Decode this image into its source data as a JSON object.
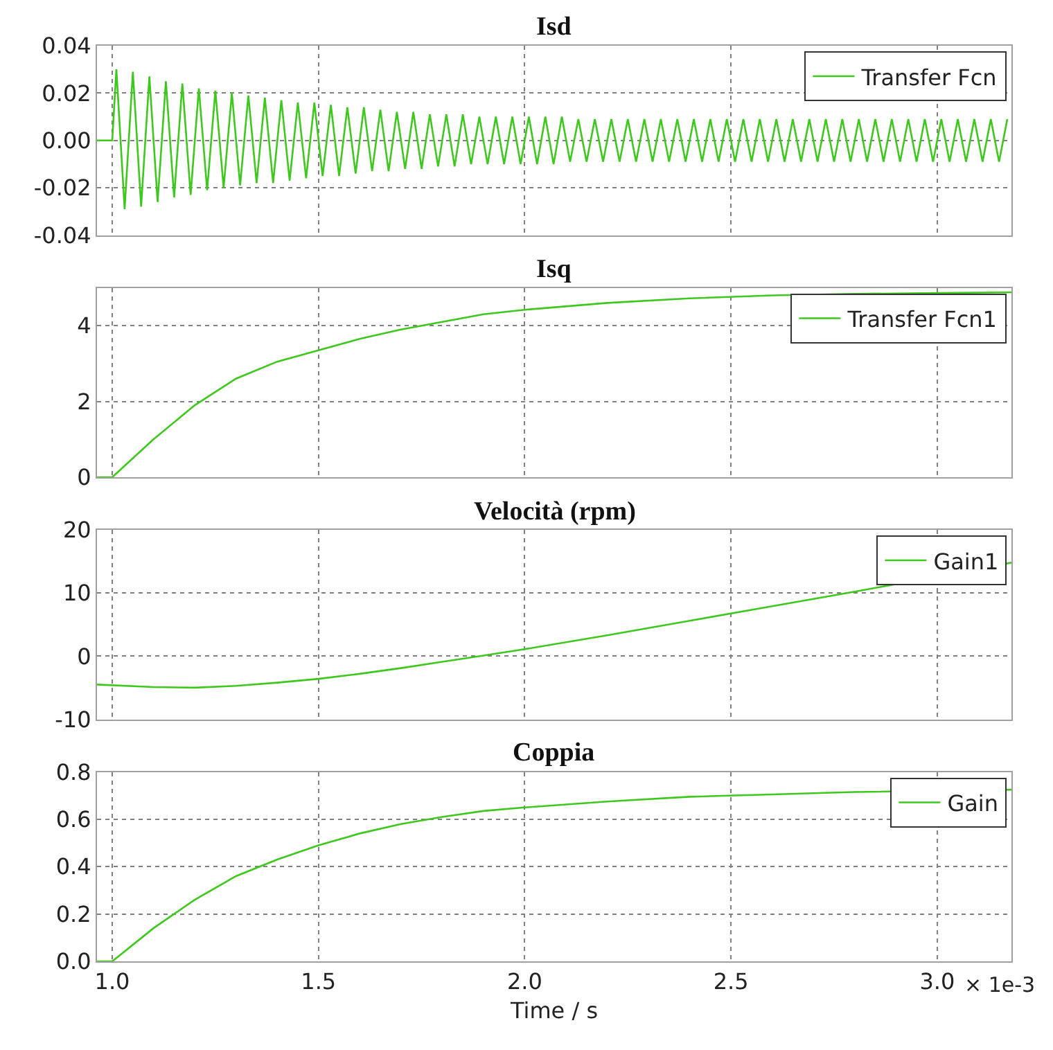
{
  "chart_data": [
    {
      "type": "line",
      "title": "Isd",
      "xlim": [
        0.963,
        3.18
      ],
      "xticks": [
        1.0,
        1.5,
        2.0,
        2.5,
        3.0
      ],
      "ylim": [
        -0.04,
        0.04
      ],
      "yticks": [
        {
          "value": -0.04,
          "label": "-0.04"
        },
        {
          "value": -0.02,
          "label": "-0.02"
        },
        {
          "value": 0,
          "label": "0.00"
        },
        {
          "value": 0.02,
          "label": "0.02"
        },
        {
          "value": 0.04,
          "label": "0.04"
        }
      ],
      "grid": true,
      "legend": "top right",
      "tick_labels": "y",
      "series": [
        {
          "name": "Transfer Fcn",
          "color": "#3ec81e",
          "x": [
            0.963,
            1.0,
            1.01,
            1.03,
            1.05,
            1.07,
            1.09,
            1.11,
            1.13,
            1.15,
            1.17,
            1.19,
            1.21,
            1.23,
            1.25,
            1.27,
            1.29,
            1.31,
            1.33,
            1.35,
            1.37,
            1.39,
            1.41,
            1.43,
            1.45,
            1.47,
            1.49,
            1.51,
            1.53,
            1.55,
            1.57,
            1.59,
            1.61,
            1.63,
            1.65,
            1.67,
            1.69,
            1.71,
            1.73,
            1.75,
            1.77,
            1.79,
            1.81,
            1.83,
            1.85,
            1.87,
            1.89,
            1.91,
            1.93,
            1.95,
            1.97,
            1.99,
            2.01,
            2.03,
            2.05,
            2.07,
            2.09,
            2.11,
            2.13,
            2.15,
            2.17,
            2.19,
            2.21,
            2.23,
            2.25,
            2.27,
            2.29,
            2.31,
            2.33,
            2.35,
            2.37,
            2.39,
            2.41,
            2.43,
            2.45,
            2.47,
            2.49,
            2.51,
            2.53,
            2.55,
            2.57,
            2.59,
            2.61,
            2.63,
            2.65,
            2.67,
            2.69,
            2.71,
            2.73,
            2.75,
            2.77,
            2.79,
            2.81,
            2.83,
            2.85,
            2.87,
            2.89,
            2.91,
            2.93,
            2.95,
            2.97,
            2.99,
            3.01,
            3.03,
            3.05,
            3.07,
            3.09,
            3.11,
            3.13,
            3.15,
            3.17
          ],
          "values": [
            0,
            0,
            0.03,
            -0.029,
            0.029,
            -0.028,
            0.027,
            -0.026,
            0.025,
            -0.024,
            0.024,
            -0.023,
            0.022,
            -0.021,
            0.021,
            -0.02,
            0.02,
            -0.019,
            0.019,
            -0.018,
            0.018,
            -0.018,
            0.017,
            -0.017,
            0.016,
            -0.016,
            0.016,
            -0.015,
            0.015,
            -0.015,
            0.014,
            -0.014,
            0.014,
            -0.013,
            0.013,
            -0.013,
            0.012,
            -0.012,
            0.012,
            -0.012,
            0.011,
            -0.011,
            0.011,
            -0.011,
            0.011,
            -0.01,
            0.01,
            -0.01,
            0.01,
            -0.01,
            0.01,
            -0.01,
            0.01,
            -0.01,
            0.01,
            -0.01,
            0.01,
            -0.009,
            0.009,
            -0.009,
            0.009,
            -0.009,
            0.009,
            -0.009,
            0.009,
            -0.009,
            0.009,
            -0.009,
            0.009,
            -0.009,
            0.009,
            -0.009,
            0.009,
            -0.009,
            0.009,
            -0.009,
            0.009,
            -0.009,
            0.009,
            -0.009,
            0.009,
            -0.009,
            0.009,
            -0.009,
            0.009,
            -0.009,
            0.009,
            -0.009,
            0.009,
            -0.009,
            0.009,
            -0.009,
            0.009,
            -0.009,
            0.009,
            -0.009,
            0.009,
            -0.009,
            0.009,
            -0.009,
            0.009,
            -0.009,
            0.009,
            -0.009,
            0.009,
            -0.009,
            0.009,
            -0.009,
            0.009,
            -0.009,
            0.009
          ]
        }
      ]
    },
    {
      "type": "line",
      "title": "Isq",
      "xlim": [
        0.963,
        3.18
      ],
      "xticks": [
        1.0,
        1.5,
        2.0,
        2.5,
        3.0
      ],
      "ylim": [
        0,
        5
      ],
      "yticks": [
        0,
        2,
        4
      ],
      "grid": true,
      "legend": "top right",
      "tick_labels": "y",
      "series": [
        {
          "name": "Transfer Fcn1",
          "color": "#3ec81e",
          "x": [
            0.963,
            1.0,
            1.1,
            1.2,
            1.3,
            1.4,
            1.5,
            1.6,
            1.7,
            1.8,
            1.9,
            2.0,
            2.2,
            2.4,
            2.6,
            2.8,
            3.0,
            3.18
          ],
          "values": [
            0,
            0,
            1.0,
            1.9,
            2.6,
            3.05,
            3.35,
            3.65,
            3.9,
            4.1,
            4.3,
            4.42,
            4.6,
            4.72,
            4.8,
            4.84,
            4.86,
            4.88
          ]
        }
      ]
    },
    {
      "type": "line",
      "title": "Velocità (rpm)",
      "xlim": [
        0.963,
        3.18
      ],
      "xticks": [
        1.0,
        1.5,
        2.0,
        2.5,
        3.0
      ],
      "ylim": [
        -10,
        20
      ],
      "yticks": [
        -10,
        0,
        10,
        20
      ],
      "grid": true,
      "legend": "top right",
      "tick_labels": "y",
      "series": [
        {
          "name": "Gain1",
          "color": "#3ec81e",
          "x": [
            0.963,
            1.1,
            1.2,
            1.3,
            1.4,
            1.5,
            1.6,
            1.7,
            1.8,
            1.9,
            2.0,
            2.2,
            2.4,
            2.6,
            2.8,
            3.18
          ],
          "values": [
            -4.5,
            -4.9,
            -5.0,
            -4.7,
            -4.2,
            -3.6,
            -2.8,
            -1.9,
            -0.9,
            0.1,
            1.1,
            3.3,
            5.6,
            7.9,
            10.2,
            14.8
          ]
        }
      ]
    },
    {
      "type": "line",
      "title": "Coppia",
      "xlabel": "Time / s",
      "annotations": [
        "× 1e-3"
      ],
      "xlim": [
        0.963,
        3.18
      ],
      "xticks": [
        {
          "value": 1.0,
          "label": "1.0"
        },
        {
          "value": 1.5,
          "label": "1.5"
        },
        {
          "value": 2.0,
          "label": "2.0"
        },
        {
          "value": 2.5,
          "label": "2.5"
        },
        {
          "value": 3.0,
          "label": "3.0"
        }
      ],
      "ylim": [
        0,
        0.8
      ],
      "yticks": [
        {
          "value": 0,
          "label": "0.0"
        },
        0.2,
        0.4,
        0.6,
        0.8
      ],
      "grid": true,
      "legend": "top right",
      "series": [
        {
          "name": "Gain",
          "color": "#3ec81e",
          "x": [
            0.963,
            1.0,
            1.1,
            1.2,
            1.3,
            1.4,
            1.5,
            1.6,
            1.7,
            1.8,
            1.9,
            2.0,
            2.2,
            2.4,
            2.6,
            2.8,
            3.18
          ],
          "values": [
            0,
            0,
            0.14,
            0.26,
            0.36,
            0.43,
            0.49,
            0.54,
            0.58,
            0.61,
            0.635,
            0.65,
            0.675,
            0.695,
            0.705,
            0.715,
            0.725
          ]
        }
      ]
    }
  ]
}
